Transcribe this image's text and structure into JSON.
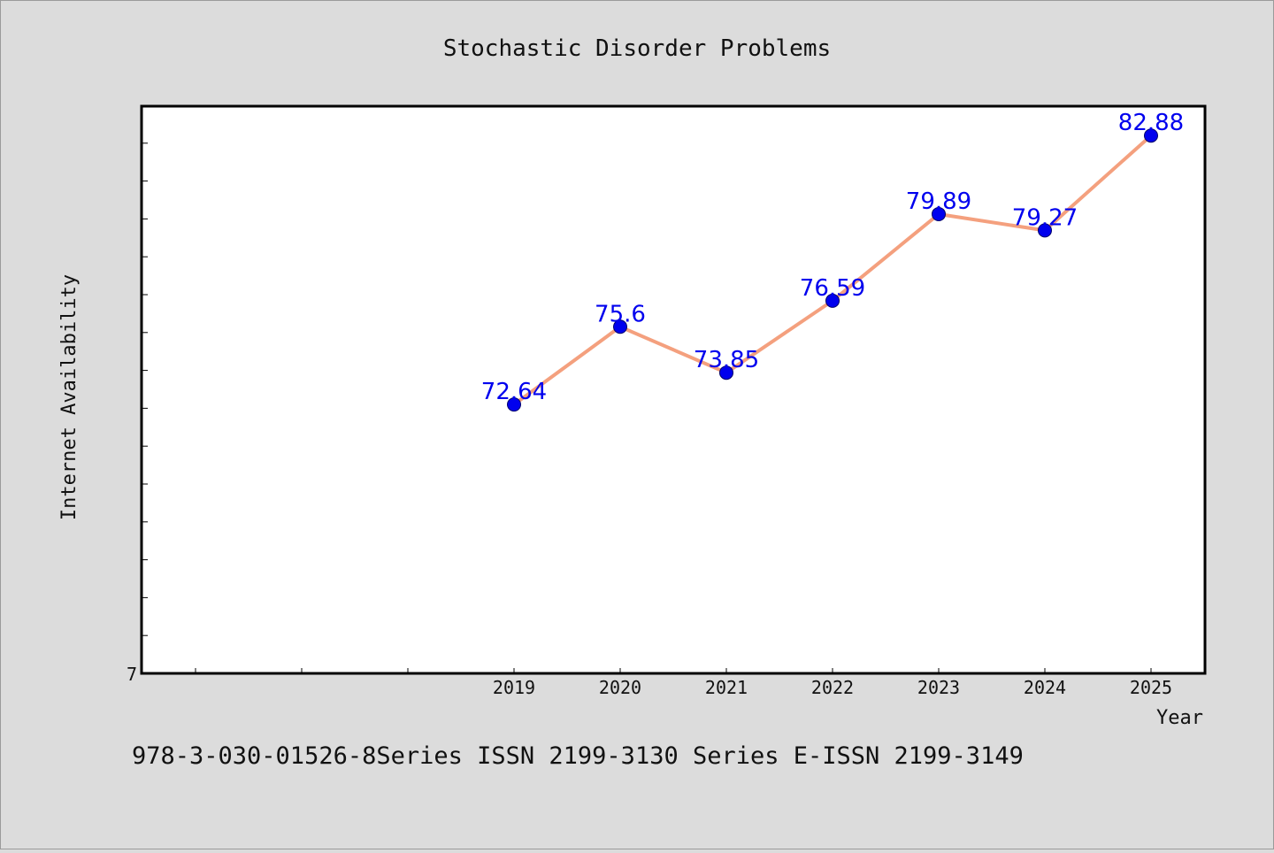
{
  "chart_data": {
    "type": "line",
    "title": "Stochastic Disorder Problems",
    "xlabel": "Year",
    "ylabel": "Internet Availability",
    "x": [
      "2019",
      "2020",
      "2021",
      "2022",
      "2023",
      "2024",
      "2025"
    ],
    "series": [
      {
        "values": [
          72.64,
          75.6,
          73.85,
          76.59,
          79.89,
          79.27,
          82.88
        ],
        "labels": [
          "72.64",
          "75.6",
          "73.85",
          "76.59",
          "79.89",
          "79.27",
          "82.88"
        ]
      }
    ],
    "y_tick_label": "7",
    "ylim": [
      62.4,
      84.0
    ],
    "grid": false,
    "line_color": "#f4a07e",
    "marker_color": "#0000ee",
    "label_color": "#0000ee"
  },
  "footer": {
    "text": "978-3-030-01526-8Series ISSN 2199-3130 Series E-ISSN 2199-3149"
  }
}
